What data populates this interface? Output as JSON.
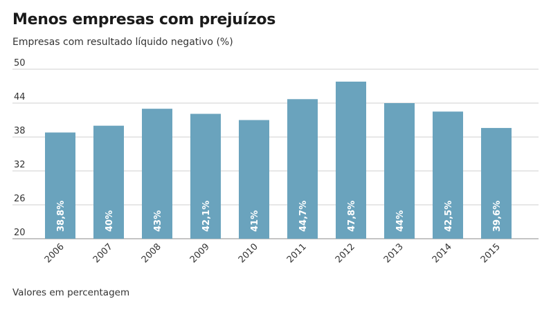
{
  "title": "Menos empresas com prejuízos",
  "subtitle": "Empresas com resultado líquido negativo (%)",
  "footer": "Valores em percentagem",
  "colors": {
    "bar": "#6aa3bd",
    "grid": "#cfcfcf",
    "baseline": "#888888"
  },
  "chart_data": {
    "type": "bar",
    "title": "Menos empresas com prejuízos",
    "ylabel": "Empresas com resultado líquido negativo (%)",
    "xlabel": "",
    "ylim": [
      20,
      50
    ],
    "yticks": [
      20,
      26,
      32,
      38,
      44,
      50
    ],
    "categories": [
      "2006",
      "2007",
      "2008",
      "2009",
      "2010",
      "2011",
      "2012",
      "2013",
      "2014",
      "2015"
    ],
    "values": [
      38.8,
      40,
      43,
      42.1,
      41,
      44.7,
      47.8,
      44,
      42.5,
      39.6
    ],
    "labels": [
      "38,8%",
      "40%",
      "43%",
      "42,1%",
      "41%",
      "44,7%",
      "47,8%",
      "44%",
      "42,5%",
      "39,6%"
    ]
  }
}
